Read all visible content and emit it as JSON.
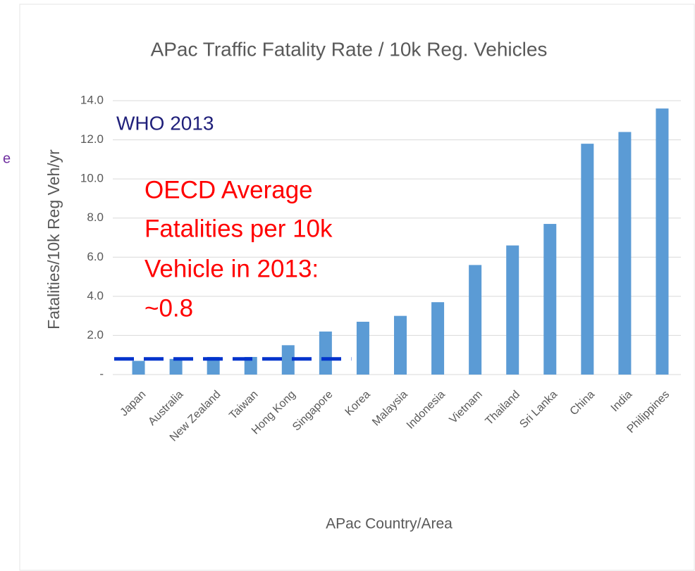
{
  "side_fragment": "e",
  "chart_data": {
    "type": "bar",
    "title": "APac Traffic Fatality Rate / 10k Reg. Vehicles",
    "x_label": "APac Country/Area",
    "y_label": "Fatalities/10k Reg Veh/yr",
    "categories": [
      "Japan",
      "Australia",
      "New Zealand",
      "Taiwan",
      "Hong Kong",
      "Singapore",
      "Korea",
      "Malaysia",
      "Indonesia",
      "Vietnam",
      "Thailand",
      "Sri Lanka",
      "China",
      "India",
      "Philippines"
    ],
    "values": [
      0.7,
      0.8,
      0.9,
      0.9,
      1.5,
      2.2,
      2.7,
      3.0,
      3.7,
      5.6,
      6.6,
      7.7,
      11.8,
      12.4,
      13.6
    ],
    "color": "#5b9bd5",
    "ylim": [
      0,
      14
    ],
    "yticks": [
      {
        "value": 0,
        "label": "-"
      },
      {
        "value": 2,
        "label": "2.0"
      },
      {
        "value": 4,
        "label": "4.0"
      },
      {
        "value": 6,
        "label": "6.0"
      },
      {
        "value": 8,
        "label": "8.0"
      },
      {
        "value": 10,
        "label": "10.0"
      },
      {
        "value": 12,
        "label": "12.0"
      },
      {
        "value": 14,
        "label": "14.0"
      }
    ],
    "grid": true,
    "source_note": "WHO 2013",
    "annotation": [
      "OECD Average",
      "Fatalities per 10k",
      "Vehicle in 2013:",
      "~0.8"
    ],
    "reference_line": {
      "value": 0.8,
      "color": "#0033cc",
      "from": "Japan",
      "to": "Singapore"
    }
  }
}
